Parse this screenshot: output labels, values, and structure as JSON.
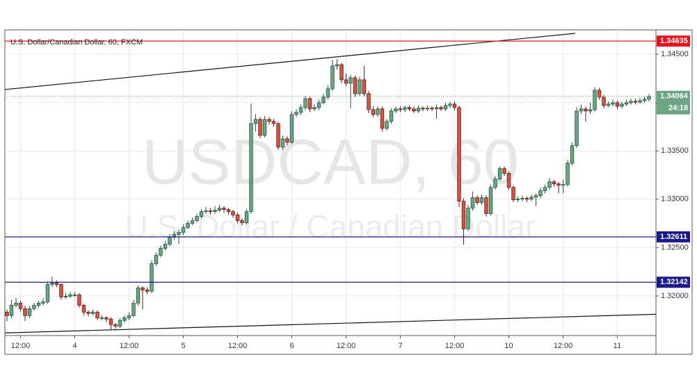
{
  "chart_data": {
    "type": "candlestick",
    "title": "U.S. Dollar/Canadian Dollar, 60, FXCM",
    "watermark": [
      "USDCAD, 60",
      "U.S. Dollar / Canadian Dollar"
    ],
    "categories": [
      null,
      null,
      null,
      "12:00",
      null,
      null,
      null,
      null,
      null,
      null,
      null,
      null,
      null,
      null,
      null,
      "4",
      null,
      null,
      null,
      null,
      null,
      null,
      null,
      null,
      null,
      null,
      null,
      "12:00",
      null,
      null,
      null,
      null,
      null,
      null,
      null,
      null,
      null,
      null,
      null,
      "5",
      null,
      null,
      null,
      null,
      null,
      null,
      null,
      null,
      null,
      null,
      null,
      "12:00",
      null,
      null,
      null,
      null,
      null,
      null,
      null,
      null,
      null,
      null,
      null,
      "6",
      null,
      null,
      null,
      null,
      null,
      null,
      null,
      null,
      null,
      null,
      null,
      "12:00",
      null,
      null,
      null,
      null,
      null,
      null,
      null,
      null,
      null,
      null,
      null,
      "7",
      null,
      null,
      null,
      null,
      null,
      null,
      null,
      null,
      null,
      null,
      null,
      "12:00",
      null,
      null,
      null,
      null,
      null,
      null,
      null,
      null,
      null,
      null,
      null,
      "10",
      null,
      null,
      null,
      null,
      null,
      null,
      null,
      null,
      null,
      null,
      null,
      "12:00",
      null,
      null,
      null,
      null,
      null,
      null,
      null,
      null,
      null,
      null,
      null,
      "11",
      null,
      null,
      null,
      null,
      null,
      null,
      null
    ],
    "open": [
      1.31833,
      1.31797,
      1.31904,
      1.31926,
      1.31869,
      1.31797,
      1.31869,
      1.31904,
      1.31926,
      1.3194,
      1.32119,
      1.32134,
      1.32119,
      1.3199,
      1.31997,
      1.32012,
      1.32012,
      1.31904,
      1.31833,
      1.31819,
      1.31833,
      1.31775,
      1.31775,
      1.31761,
      1.31704,
      1.31689,
      1.31747,
      1.31775,
      1.31797,
      1.31926,
      1.32084,
      1.32062,
      1.32048,
      1.32335,
      1.32421,
      1.32492,
      1.32535,
      1.32607,
      1.32636,
      1.32657,
      1.32708,
      1.32751,
      1.32779,
      1.32822,
      1.32872,
      1.3288,
      1.32872,
      1.32887,
      1.32908,
      1.32894,
      1.32872,
      1.32837,
      1.32779,
      1.32758,
      1.32872,
      1.33783,
      1.33826,
      1.33661,
      1.33826,
      1.33805,
      1.33783,
      1.33539,
      1.33625,
      1.33589,
      1.33876,
      1.33898,
      1.33948,
      1.34041,
      1.33934,
      1.33948,
      1.33998,
      1.34056,
      1.34142,
      1.34378,
      1.34392,
      1.34235,
      1.34199,
      1.34256,
      1.34091,
      1.34235,
      1.34091,
      1.33926,
      1.33876,
      1.33934,
      1.33733,
      1.33805,
      1.33912,
      1.33934,
      1.33926,
      1.33948,
      1.33934,
      1.33912,
      1.33941,
      1.33934,
      1.33941,
      1.33934,
      1.33948,
      1.33934,
      1.33969,
      1.33984,
      1.33948,
      1.3298,
      1.32693,
      1.32908,
      1.33016,
      1.32966,
      1.33016,
      1.32851,
      1.33123,
      1.33209,
      1.33317,
      1.33267,
      1.33123,
      1.32994,
      1.33001,
      1.33009,
      1.33001,
      1.33023,
      1.33037,
      1.33088,
      1.33123,
      1.33181,
      1.33159,
      1.33145,
      1.33152,
      1.33374,
      1.33554,
      1.33912,
      1.33934,
      1.33912,
      1.33926,
      1.34127,
      1.34056,
      1.33969,
      1.33984,
      1.33998,
      1.33962,
      1.33984,
      1.33998,
      1.34012,
      1.34005,
      1.3402,
      1.34034
    ],
    "high": [
      1.3186,
      1.3196,
      1.3198,
      1.3195,
      1.319,
      1.319,
      1.3193,
      1.3195,
      1.3198,
      1.3215,
      1.322,
      1.3216,
      1.3213,
      1.3203,
      1.3204,
      1.3204,
      1.3203,
      1.3192,
      1.3185,
      1.3186,
      1.3185,
      1.318,
      1.3179,
      1.3178,
      1.3172,
      1.3177,
      1.318,
      1.3183,
      1.3196,
      1.3211,
      1.321,
      1.3209,
      1.3237,
      1.3245,
      1.3252,
      1.3257,
      1.3264,
      1.3267,
      1.3269,
      1.3274,
      1.3278,
      1.3281,
      1.3285,
      1.329,
      1.3292,
      1.3291,
      1.3293,
      1.3294,
      1.3293,
      1.3291,
      1.3289,
      1.3286,
      1.328,
      1.329,
      1.3399,
      1.3388,
      1.3385,
      1.3386,
      1.3385,
      1.3383,
      1.338,
      1.3366,
      1.3365,
      1.3391,
      1.3393,
      1.3398,
      1.3407,
      1.3406,
      1.3398,
      1.3403,
      1.3409,
      1.3418,
      1.3444,
      1.3445,
      1.3441,
      1.343,
      1.3429,
      1.3428,
      1.3427,
      1.3438,
      1.3412,
      1.3396,
      1.3396,
      1.3396,
      1.3383,
      1.3394,
      1.3396,
      1.3396,
      1.3397,
      1.3397,
      1.3396,
      1.3397,
      1.3396,
      1.3397,
      1.3396,
      1.3398,
      1.3397,
      1.34,
      1.3401,
      1.3401,
      1.3397,
      1.3301,
      1.3294,
      1.3308,
      1.3304,
      1.3305,
      1.3304,
      1.3315,
      1.3324,
      1.3334,
      1.3334,
      1.3329,
      1.3314,
      1.3303,
      1.3304,
      1.3303,
      1.3305,
      1.3306,
      1.3312,
      1.3315,
      1.3322,
      1.332,
      1.3318,
      1.332,
      1.3341,
      1.3359,
      1.3395,
      1.3398,
      1.3396,
      1.34,
      1.3416,
      1.3415,
      1.3408,
      1.3401,
      1.3403,
      1.3402,
      1.3401,
      1.3403,
      1.3404,
      1.3404,
      1.3405,
      1.3406,
      1.3409
    ],
    "low": [
      1.3174,
      1.3177,
      1.3188,
      1.3184,
      1.3174,
      1.3177,
      1.3185,
      1.3188,
      1.319,
      1.3192,
      1.3209,
      1.3209,
      1.3196,
      1.3197,
      1.3198,
      1.3199,
      1.3188,
      1.318,
      1.3179,
      1.318,
      1.3175,
      1.3175,
      1.3173,
      1.3165,
      1.3166,
      1.3167,
      1.3172,
      1.3175,
      1.3178,
      1.319,
      1.3186,
      1.3202,
      1.3203,
      1.3231,
      1.324,
      1.3247,
      1.3251,
      1.3258,
      1.3254,
      1.3263,
      1.3269,
      1.3273,
      1.3276,
      1.328,
      1.3285,
      1.3284,
      1.3285,
      1.3287,
      1.3286,
      1.3284,
      1.3281,
      1.3275,
      1.3273,
      1.3274,
      1.3285,
      1.337,
      1.3363,
      1.3364,
      1.3377,
      1.3375,
      1.3351,
      1.3351,
      1.3356,
      1.3357,
      1.3385,
      1.3387,
      1.3392,
      1.339,
      1.3391,
      1.3392,
      1.3398,
      1.3403,
      1.3412,
      1.3434,
      1.342,
      1.3417,
      1.3394,
      1.3406,
      1.3407,
      1.3406,
      1.3389,
      1.3385,
      1.3385,
      1.337,
      1.3371,
      1.3378,
      1.3389,
      1.339,
      1.339,
      1.3391,
      1.3389,
      1.3389,
      1.3391,
      1.3391,
      1.3391,
      1.3383,
      1.3391,
      1.3391,
      1.3394,
      1.3392,
      1.3292,
      1.3253,
      1.3267,
      1.3288,
      1.3294,
      1.3294,
      1.3282,
      1.3283,
      1.331,
      1.3319,
      1.3324,
      1.331,
      1.3297,
      1.3297,
      1.3298,
      1.3297,
      1.3298,
      1.3293,
      1.3301,
      1.3306,
      1.331,
      1.3313,
      1.3306,
      1.3306,
      1.3313,
      1.3335,
      1.3353,
      1.3388,
      1.338,
      1.3388,
      1.339,
      1.3403,
      1.3394,
      1.3395,
      1.3396,
      1.3393,
      1.3394,
      1.3396,
      1.3398,
      1.3398,
      1.3399,
      1.34,
      1.3401
    ],
    "close": [
      1.31797,
      1.31904,
      1.31926,
      1.31869,
      1.31797,
      1.31869,
      1.31904,
      1.31926,
      1.3194,
      1.32119,
      1.32134,
      1.32119,
      1.3199,
      1.31997,
      1.32012,
      1.32012,
      1.31904,
      1.31833,
      1.31819,
      1.31833,
      1.31775,
      1.31775,
      1.31761,
      1.31704,
      1.31689,
      1.31747,
      1.31775,
      1.31797,
      1.31926,
      1.32084,
      1.32062,
      1.32048,
      1.32335,
      1.32421,
      1.32492,
      1.32535,
      1.32607,
      1.32636,
      1.32657,
      1.32708,
      1.32751,
      1.32779,
      1.32822,
      1.32872,
      1.3288,
      1.32872,
      1.32887,
      1.32908,
      1.32894,
      1.32872,
      1.32837,
      1.32779,
      1.32758,
      1.32872,
      1.33783,
      1.33826,
      1.33661,
      1.33826,
      1.33805,
      1.33783,
      1.33539,
      1.33625,
      1.33589,
      1.33876,
      1.33898,
      1.33948,
      1.34041,
      1.33934,
      1.33948,
      1.33998,
      1.34056,
      1.34142,
      1.34378,
      1.34392,
      1.34235,
      1.34199,
      1.34256,
      1.34091,
      1.34235,
      1.34091,
      1.33926,
      1.33876,
      1.33934,
      1.33733,
      1.33805,
      1.33912,
      1.33934,
      1.33926,
      1.33948,
      1.33934,
      1.33912,
      1.33941,
      1.33934,
      1.33941,
      1.33934,
      1.33948,
      1.33934,
      1.33969,
      1.33984,
      1.33948,
      1.3298,
      1.32693,
      1.32908,
      1.33016,
      1.32966,
      1.33016,
      1.32851,
      1.33123,
      1.33209,
      1.33317,
      1.33267,
      1.33123,
      1.32994,
      1.33001,
      1.33009,
      1.33001,
      1.33023,
      1.33037,
      1.33088,
      1.33123,
      1.33181,
      1.33159,
      1.33145,
      1.33152,
      1.33374,
      1.33554,
      1.33912,
      1.33934,
      1.33912,
      1.33926,
      1.34127,
      1.34056,
      1.33969,
      1.33984,
      1.33998,
      1.33962,
      1.33984,
      1.33998,
      1.34012,
      1.34005,
      1.3402,
      1.34034,
      1.34064
    ],
    "up_color": "#6ba583",
    "down_color": "#d75442",
    "ylim": [
      1.31591,
      1.34751
    ],
    "yticks": [
      {
        "value": 1.32,
        "label": "1.32000"
      },
      {
        "value": 1.325,
        "label": "1.32500"
      },
      {
        "value": 1.33,
        "label": "1.33000"
      },
      {
        "value": 1.335,
        "label": "1.33500"
      },
      {
        "value": 1.34,
        "label": "1.34000"
      },
      {
        "value": 1.345,
        "label": "1.34500"
      }
    ],
    "grid": true,
    "hlines": [
      {
        "value": 1.34635,
        "color": "#e8141c"
      },
      {
        "value": 1.32611,
        "color": "#1a1a8c"
      },
      {
        "value": 1.32142,
        "color": "#1a1a8c"
      }
    ],
    "last_price": 1.34064,
    "countdown": "24:18",
    "trendlines": [
      {
        "x": [
          -0.5,
          125.7
        ],
        "y": [
          1.34134,
          1.34715
        ]
      },
      {
        "x": [
          -0.5,
          143.5
        ],
        "y": [
          1.31618,
          1.31811
        ]
      }
    ]
  }
}
